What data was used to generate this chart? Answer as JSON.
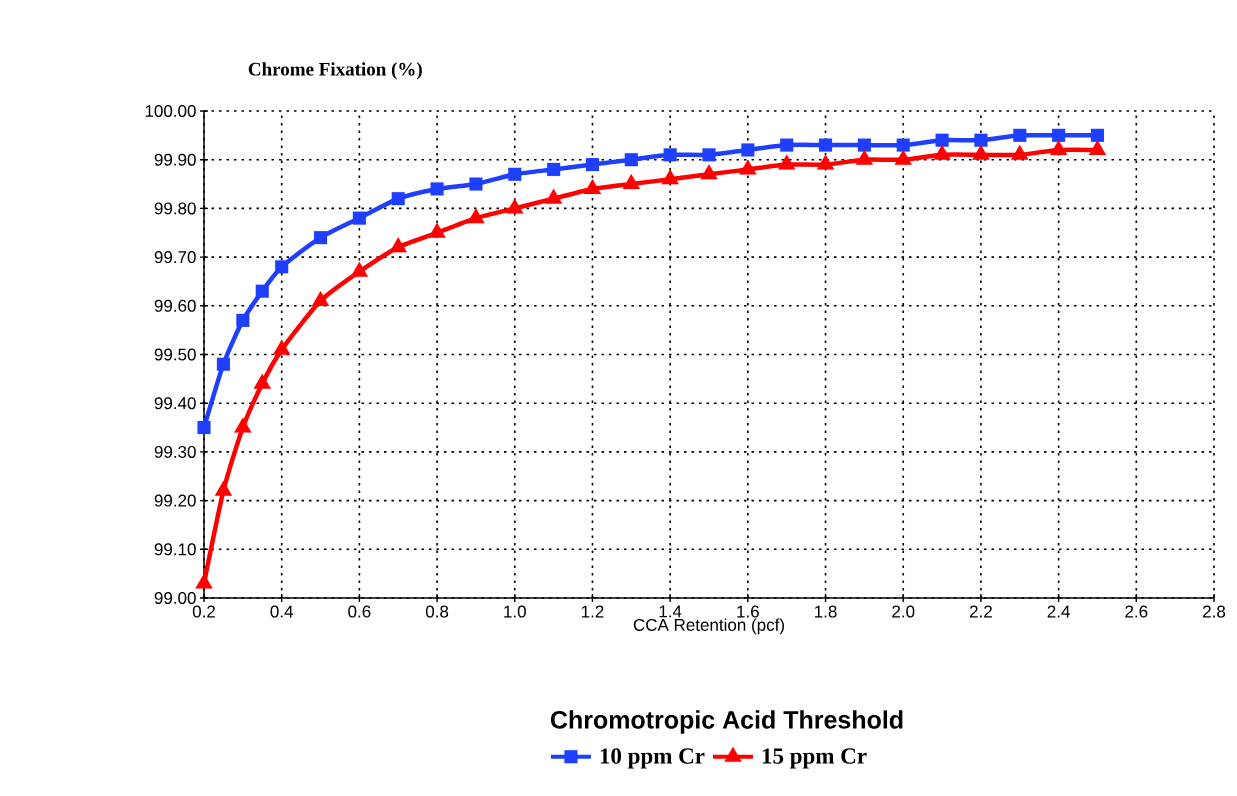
{
  "chart_data": {
    "type": "line",
    "ylabel": "Chrome Fixation (%)",
    "xlabel": "CCA Retention (pcf)",
    "legend_title": "Chromotropic Acid Threshold",
    "x": [
      0.2,
      0.25,
      0.3,
      0.35,
      0.4,
      0.5,
      0.6,
      0.7,
      0.8,
      0.9,
      1.0,
      1.1,
      1.2,
      1.3,
      1.4,
      1.5,
      1.6,
      1.7,
      1.8,
      1.9,
      2.0,
      2.1,
      2.2,
      2.3,
      2.4,
      2.5
    ],
    "series": [
      {
        "name": "10 ppm Cr",
        "color": "#1f3fff",
        "marker": "square",
        "values": [
          99.35,
          99.48,
          99.57,
          99.63,
          99.68,
          99.74,
          99.78,
          99.82,
          99.84,
          99.85,
          99.87,
          99.88,
          99.89,
          99.9,
          99.91,
          99.91,
          99.92,
          99.93,
          99.93,
          99.93,
          99.93,
          99.94,
          99.94,
          99.95,
          99.95,
          99.95
        ]
      },
      {
        "name": "15 ppm Cr",
        "color": "#ff0000",
        "marker": "triangle",
        "values": [
          99.03,
          99.22,
          99.35,
          99.44,
          99.51,
          99.61,
          99.67,
          99.72,
          99.75,
          99.78,
          99.8,
          99.82,
          99.84,
          99.85,
          99.86,
          99.87,
          99.88,
          99.89,
          99.89,
          99.9,
          99.9,
          99.91,
          99.91,
          99.91,
          99.92,
          99.92
        ]
      }
    ],
    "xlim": [
      0.2,
      2.8
    ],
    "xticks": [
      {
        "value": 0.2,
        "label": "0.2"
      },
      {
        "value": 0.4,
        "label": "0.4"
      },
      {
        "value": 0.6,
        "label": "0.6"
      },
      {
        "value": 0.8,
        "label": "0.8"
      },
      {
        "value": 1.0,
        "label": "1.0"
      },
      {
        "value": 1.2,
        "label": "1.2"
      },
      {
        "value": 1.4,
        "label": "1.4"
      },
      {
        "value": 1.6,
        "label": "1.6"
      },
      {
        "value": 1.8,
        "label": "1.8"
      },
      {
        "value": 2.0,
        "label": "2.0"
      },
      {
        "value": 2.2,
        "label": "2.2"
      },
      {
        "value": 2.4,
        "label": "2.4"
      },
      {
        "value": 2.6,
        "label": "2.6"
      },
      {
        "value": 2.8,
        "label": "2.8"
      }
    ],
    "ylim": [
      99.0,
      100.0
    ],
    "yticks": [
      {
        "value": 99.0,
        "label": "99.00"
      },
      {
        "value": 99.1,
        "label": "99.10"
      },
      {
        "value": 99.2,
        "label": "99.20"
      },
      {
        "value": 99.3,
        "label": "99.30"
      },
      {
        "value": 99.4,
        "label": "99.40"
      },
      {
        "value": 99.5,
        "label": "99.50"
      },
      {
        "value": 99.6,
        "label": "99.60"
      },
      {
        "value": 99.7,
        "label": "99.70"
      },
      {
        "value": 99.8,
        "label": "99.80"
      },
      {
        "value": 99.9,
        "label": "99.90"
      },
      {
        "value": 100.0,
        "label": "100.00"
      }
    ],
    "grid": true,
    "legend": "bottom",
    "line_style": "solid"
  }
}
